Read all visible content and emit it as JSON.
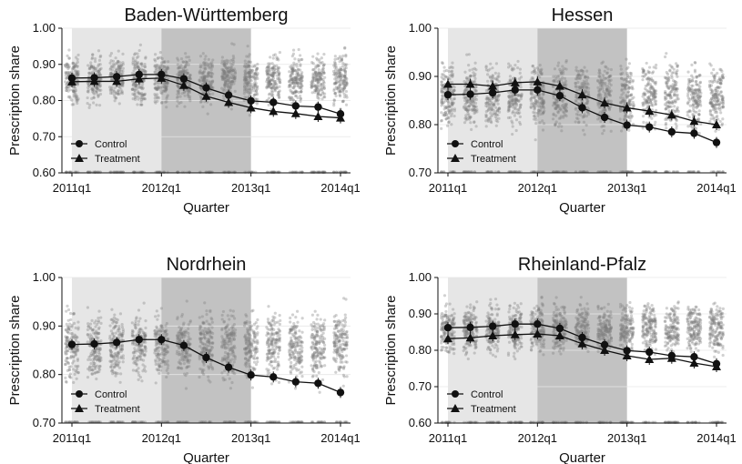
{
  "figure": {
    "quarters": [
      "2011q1",
      "2011q2",
      "2011q3",
      "2011q4",
      "2012q1",
      "2012q2",
      "2012q3",
      "2012q4",
      "2013q1",
      "2013q2",
      "2013q3",
      "2013q4",
      "2014q1"
    ],
    "x_tick_labels": [
      "2011q1",
      "2012q1",
      "2013q1",
      "2014q1"
    ],
    "xlabel": "Quarter",
    "ylabel": "Prescription share",
    "legend": {
      "control": "Control",
      "treatment": "Treatment",
      "placement": "bottom-left"
    },
    "colors": {
      "dots": "#7a7a7a",
      "line": "#111111",
      "shade_light": "#e6e6e6",
      "shade_dark": "#c2c2c2",
      "grid": "#e6e6e6"
    }
  },
  "chart_data": [
    {
      "type": "line",
      "title": "Baden-Württemberg",
      "ylim": [
        0.6,
        1.0
      ],
      "y_ticks": [
        "0.60",
        "0.70",
        "0.80",
        "0.90",
        "1.00"
      ],
      "series": [
        {
          "name": "Control",
          "values": [
            0.862,
            0.863,
            0.866,
            0.872,
            0.872,
            0.86,
            0.835,
            0.815,
            0.799,
            0.795,
            0.785,
            0.782,
            0.763
          ]
        },
        {
          "name": "Treatment",
          "values": [
            0.852,
            0.853,
            0.853,
            0.86,
            0.862,
            0.842,
            0.812,
            0.795,
            0.78,
            0.77,
            0.764,
            0.756,
            0.752
          ]
        }
      ],
      "shading": [
        {
          "from": "2011q1",
          "to": "2012q1",
          "shade": "light"
        },
        {
          "from": "2012q1",
          "to": "2013q1",
          "shade": "dark"
        }
      ]
    },
    {
      "type": "line",
      "title": "Hessen",
      "ylim": [
        0.7,
        1.0
      ],
      "y_ticks": [
        "0.70",
        "0.80",
        "0.90",
        "1.00"
      ],
      "series": [
        {
          "name": "Control",
          "values": [
            0.862,
            0.863,
            0.866,
            0.872,
            0.872,
            0.86,
            0.835,
            0.815,
            0.799,
            0.795,
            0.785,
            0.782,
            0.763
          ]
        },
        {
          "name": "Treatment",
          "values": [
            0.884,
            0.884,
            0.88,
            0.887,
            0.889,
            0.88,
            0.862,
            0.845,
            0.835,
            0.828,
            0.82,
            0.807,
            0.8
          ]
        }
      ],
      "shading": [
        {
          "from": "2011q1",
          "to": "2012q1",
          "shade": "light"
        },
        {
          "from": "2012q1",
          "to": "2013q1",
          "shade": "dark"
        }
      ]
    },
    {
      "type": "line",
      "title": "Nordrhein",
      "ylim": [
        0.7,
        1.0
      ],
      "y_ticks": [
        "0.70",
        "0.80",
        "0.90",
        "1.00"
      ],
      "series": [
        {
          "name": "Control",
          "values": [
            0.862,
            0.863,
            0.866,
            0.872,
            0.872,
            0.86,
            0.835,
            0.815,
            0.799,
            0.795,
            0.785,
            0.782,
            0.763
          ]
        },
        {
          "name": "Treatment",
          "values": []
        }
      ],
      "shading": [
        {
          "from": "2011q1",
          "to": "2012q1",
          "shade": "light"
        },
        {
          "from": "2012q1",
          "to": "2013q1",
          "shade": "dark"
        }
      ]
    },
    {
      "type": "line",
      "title": "Rheinland-Pfalz",
      "ylim": [
        0.6,
        1.0
      ],
      "y_ticks": [
        "0.60",
        "0.70",
        "0.80",
        "0.90",
        "1.00"
      ],
      "series": [
        {
          "name": "Control",
          "values": [
            0.862,
            0.863,
            0.866,
            0.872,
            0.872,
            0.86,
            0.835,
            0.815,
            0.799,
            0.795,
            0.785,
            0.782,
            0.763
          ]
        },
        {
          "name": "Treatment",
          "values": [
            0.832,
            0.834,
            0.84,
            0.843,
            0.845,
            0.84,
            0.818,
            0.8,
            0.785,
            0.775,
            0.778,
            0.765,
            0.755
          ]
        }
      ],
      "shading": [
        {
          "from": "2011q1",
          "to": "2012q1",
          "shade": "light"
        },
        {
          "from": "2012q1",
          "to": "2013q1",
          "shade": "dark"
        }
      ]
    }
  ]
}
